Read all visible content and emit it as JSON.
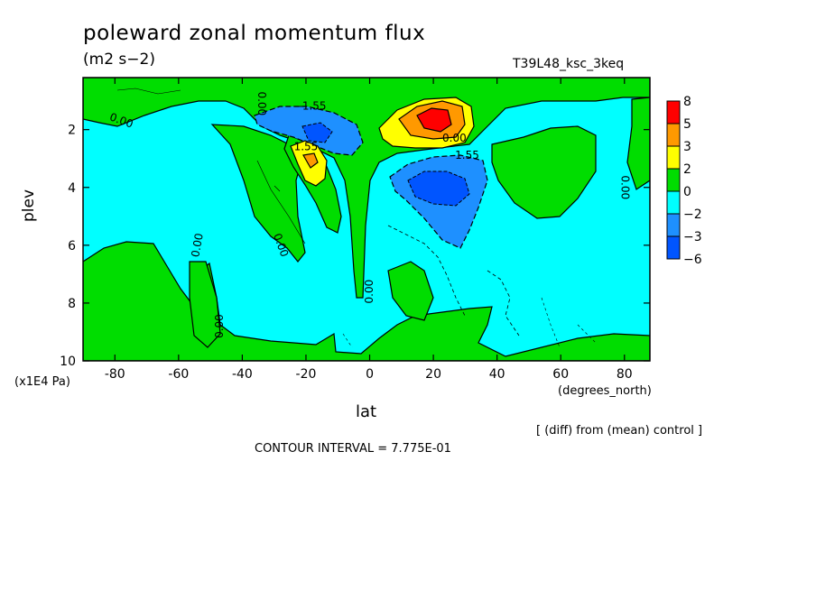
{
  "chart_data": {
    "type": "heatmap",
    "title": "poleward zonal momentum flux",
    "units": "(m2 s−2)",
    "run_name": "T39L48_ksc_3keq",
    "xlabel": "lat",
    "xunits": "(degrees_north)",
    "ylabel": "plev",
    "yunits": "(x1E4 Pa)",
    "xlim": [
      -90,
      88
    ],
    "ylim": [
      10,
      0.2
    ],
    "x_ticks": [
      -80,
      -60,
      -40,
      -20,
      0,
      20,
      40,
      60,
      80
    ],
    "y_ticks": [
      2,
      4,
      6,
      8,
      10
    ],
    "note": "[ (diff) from (mean) control ]",
    "contour_interval_text": "CONTOUR INTERVAL = 7.775E-01",
    "colorbar": {
      "labels": [
        "8",
        "5",
        "3",
        "2",
        "0",
        "−2",
        "−3",
        "−6"
      ],
      "colors": [
        "#ff0000",
        "#ff9900",
        "#ffff00",
        "#00dd00",
        "#00ffff",
        "#1e90ff",
        "#0055ff"
      ]
    },
    "contour_labels": [
      {
        "text": "0.00",
        "lat": -78,
        "plev": 1.7,
        "rot": 20
      },
      {
        "text": "0.00",
        "lat": -34,
        "plev": 1.1,
        "rot": 90
      },
      {
        "text": "-1.55",
        "lat": -18,
        "plev": 1.2,
        "rot": 0
      },
      {
        "text": "1.55",
        "lat": -20,
        "plev": 2.6,
        "rot": 0
      },
      {
        "text": "-0.00",
        "lat": 26,
        "plev": 2.3,
        "rot": 0
      },
      {
        "text": "-1.55",
        "lat": 30,
        "plev": 2.9,
        "rot": 0
      },
      {
        "text": "0.00",
        "lat": 80,
        "plev": 4.0,
        "rot": 90
      },
      {
        "text": "0.00",
        "lat": -54,
        "plev": 6.0,
        "rot": -80
      },
      {
        "text": "0.00",
        "lat": -28,
        "plev": 6.0,
        "rot": 70
      },
      {
        "text": "0.00",
        "lat": 0,
        "plev": 7.6,
        "rot": -90
      },
      {
        "text": "0.00",
        "lat": -47,
        "plev": 8.8,
        "rot": -90
      }
    ]
  }
}
